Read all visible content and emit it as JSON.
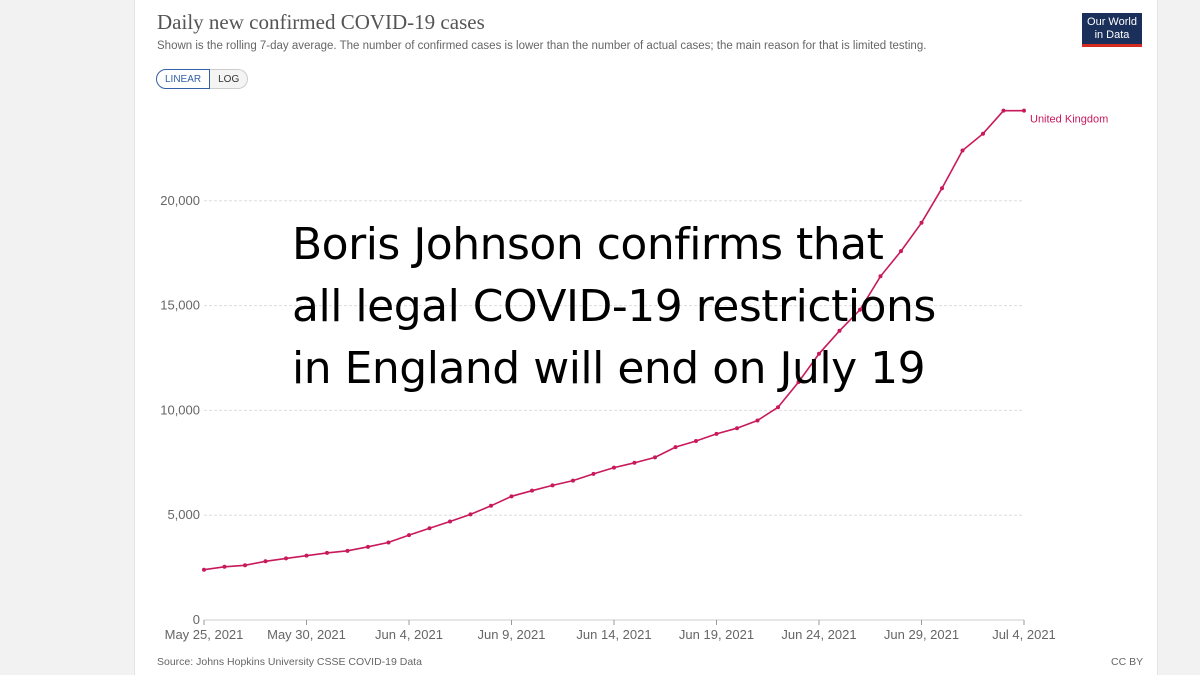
{
  "header": {
    "title": "Daily new confirmed COVID-19 cases",
    "subtitle": "Shown is the rolling 7-day average. The number of confirmed cases is lower than the number of actual cases; the main reason for that is limited testing.",
    "logo_line1": "Our World",
    "logo_line2": "in Data"
  },
  "scale_toggle": {
    "linear_label": "LINEAR",
    "log_label": "LOG",
    "selected": "LINEAR"
  },
  "footer": {
    "source": "Source: Johns Hopkins University CSSE COVID-19 Data",
    "license": "CC BY"
  },
  "overlay_caption": {
    "line1": "Boris Johnson confirms that",
    "line2": "all legal COVID-19 restrictions",
    "line3": "in England will end on July 19"
  },
  "colors": {
    "series": "#c8195b",
    "logo_bg": "#1a2f5a",
    "logo_accent": "#d42b21",
    "toggle_active": "#3360a9"
  },
  "chart_data": {
    "type": "line",
    "title": "Daily new confirmed COVID-19 cases",
    "xlabel": "",
    "ylabel": "",
    "ylim": [
      0,
      25000
    ],
    "grid": true,
    "yticks": [
      0,
      5000,
      10000,
      15000,
      20000
    ],
    "ytick_labels": [
      "0",
      "5,000",
      "10,000",
      "15,000",
      "20,000"
    ],
    "xtick_labels": [
      "May 25, 2021",
      "May 30, 2021",
      "Jun 4, 2021",
      "Jun 9, 2021",
      "Jun 14, 2021",
      "Jun 19, 2021",
      "Jun 24, 2021",
      "Jun 29, 2021",
      "Jul 4, 2021"
    ],
    "x": [
      "May 25, 2021",
      "May 26, 2021",
      "May 27, 2021",
      "May 28, 2021",
      "May 29, 2021",
      "May 30, 2021",
      "May 31, 2021",
      "Jun 1, 2021",
      "Jun 2, 2021",
      "Jun 3, 2021",
      "Jun 4, 2021",
      "Jun 5, 2021",
      "Jun 6, 2021",
      "Jun 7, 2021",
      "Jun 8, 2021",
      "Jun 9, 2021",
      "Jun 10, 2021",
      "Jun 11, 2021",
      "Jun 12, 2021",
      "Jun 13, 2021",
      "Jun 14, 2021",
      "Jun 15, 2021",
      "Jun 16, 2021",
      "Jun 17, 2021",
      "Jun 18, 2021",
      "Jun 19, 2021",
      "Jun 20, 2021",
      "Jun 21, 2021",
      "Jun 22, 2021",
      "Jun 23, 2021",
      "Jun 24, 2021",
      "Jun 25, 2021",
      "Jun 26, 2021",
      "Jun 27, 2021",
      "Jun 28, 2021",
      "Jun 29, 2021",
      "Jun 30, 2021",
      "Jul 1, 2021",
      "Jul 2, 2021",
      "Jul 3, 2021",
      "Jul 4, 2021"
    ],
    "series": [
      {
        "name": "United Kingdom",
        "values": [
          2400,
          2540,
          2610,
          2800,
          2940,
          3070,
          3200,
          3300,
          3490,
          3700,
          4050,
          4380,
          4700,
          5040,
          5450,
          5900,
          6170,
          6420,
          6650,
          6970,
          7270,
          7500,
          7760,
          8250,
          8540,
          8880,
          9150,
          9520,
          10150,
          11350,
          12700,
          13800,
          14800,
          16400,
          17600,
          18950,
          20600,
          22400,
          23200,
          24300,
          24300
        ]
      }
    ]
  }
}
